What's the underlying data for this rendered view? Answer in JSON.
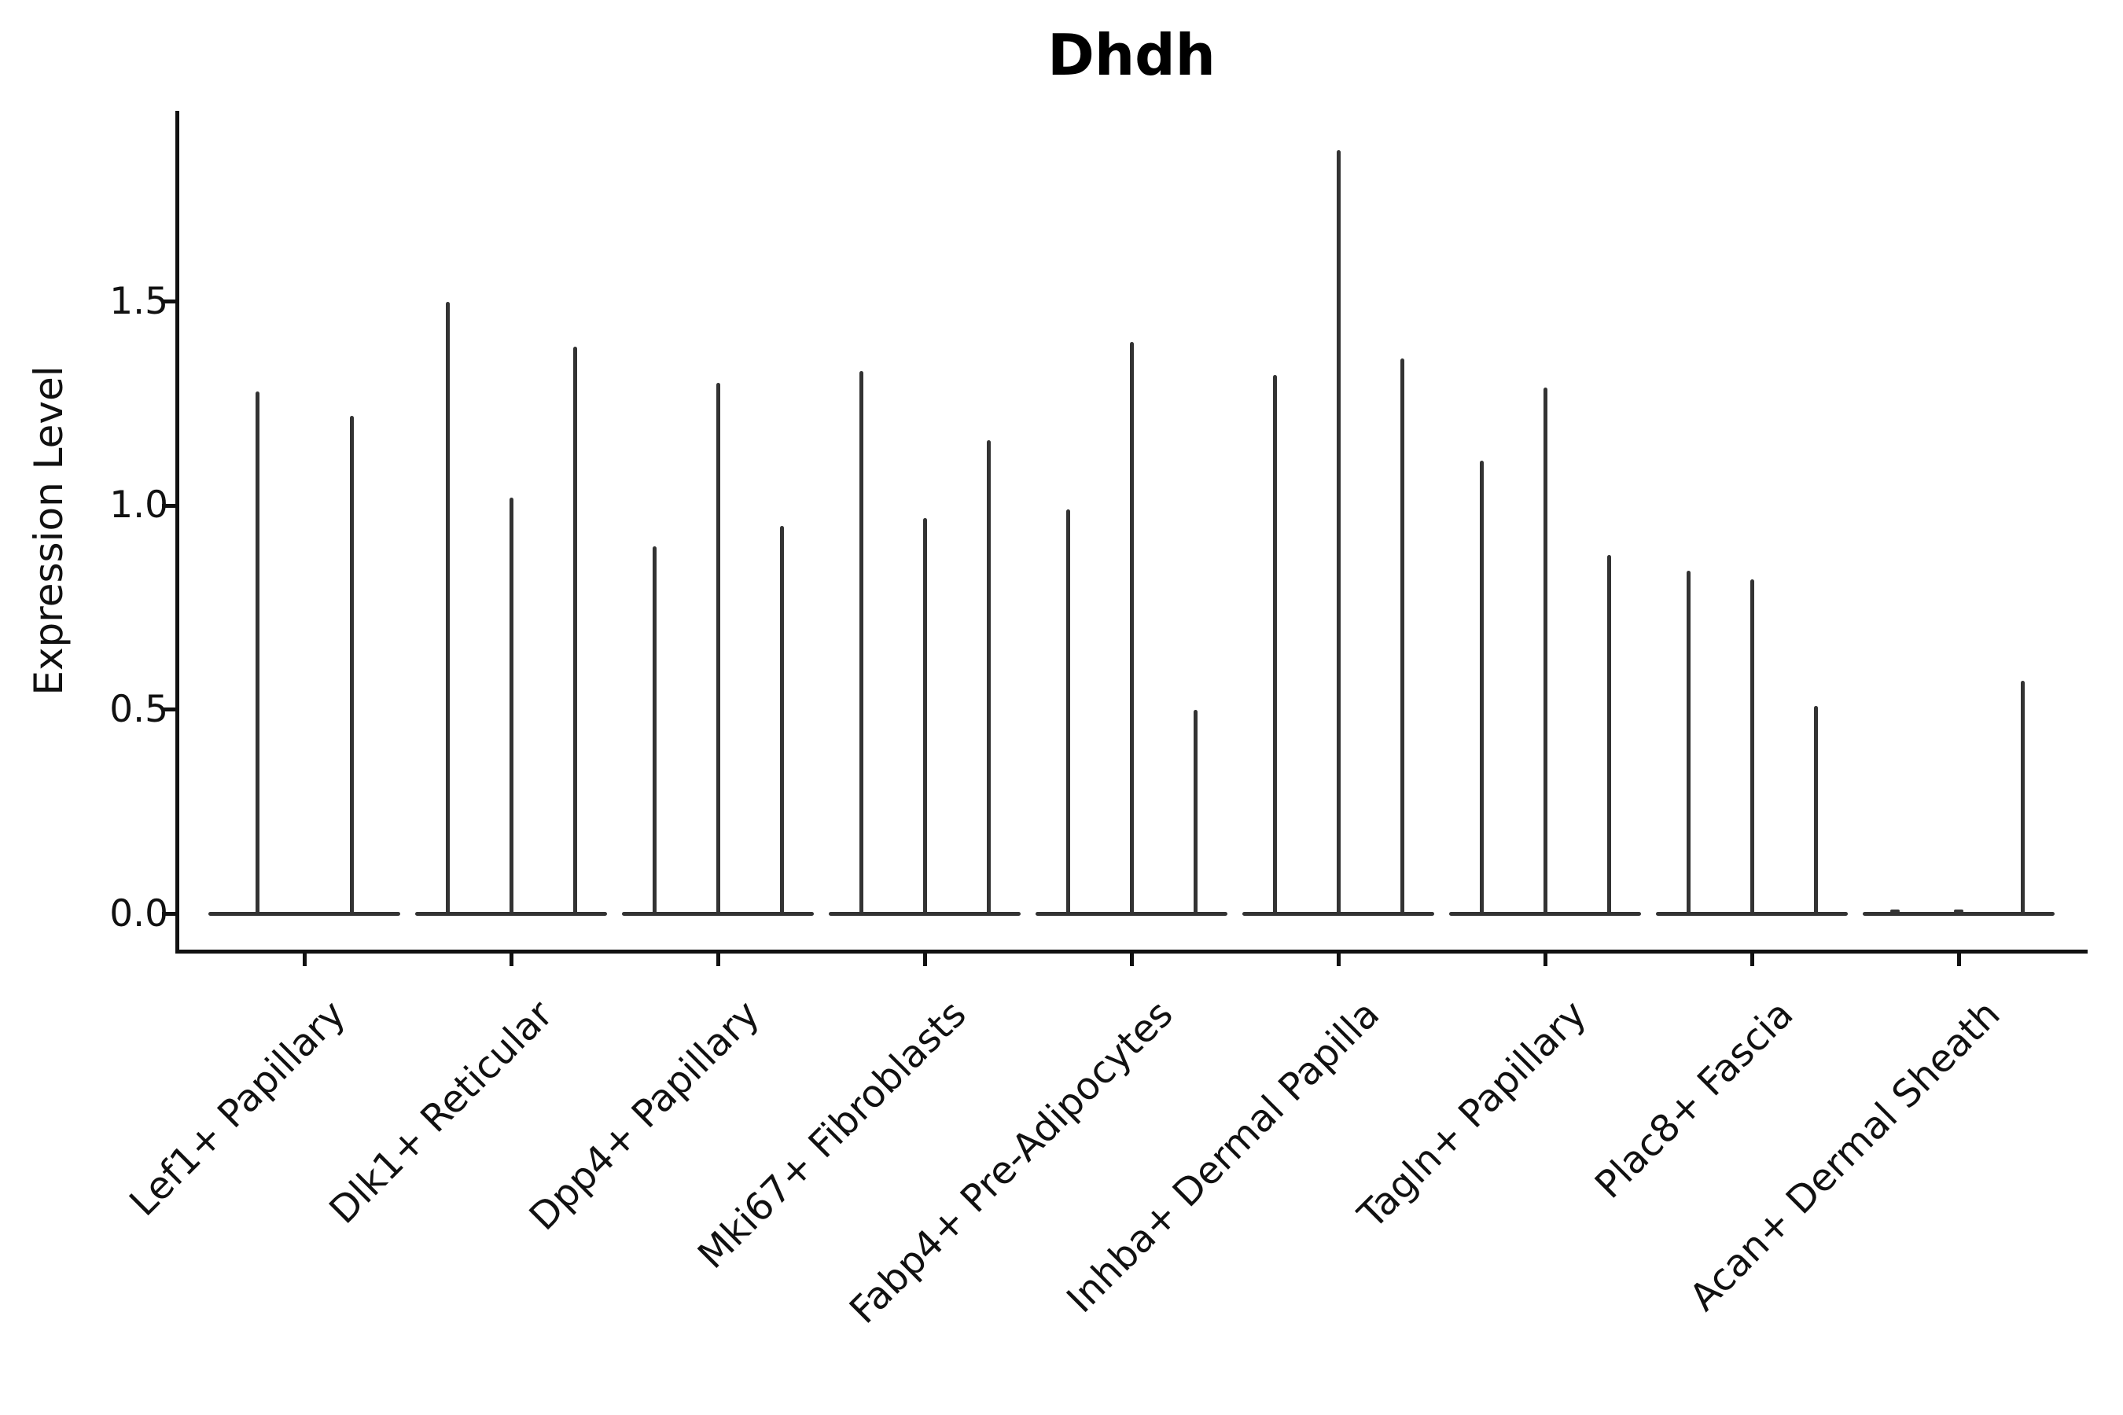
{
  "figure": {
    "title": "Dhdh",
    "background_color": "#ffffff",
    "spine_color": "#111111",
    "text_color": "#111111"
  },
  "axes": {
    "ylabel": "Expression Level",
    "xlabel": "",
    "ytick_labels": [
      "0.0",
      "0.5",
      "1.0",
      "1.5"
    ]
  },
  "chart_data": {
    "type": "violin",
    "title": "Dhdh",
    "xlabel": "",
    "ylabel": "Expression Level",
    "yticks": [
      0.0,
      0.5,
      1.0,
      1.5
    ],
    "ylim": [
      -0.09,
      1.97
    ],
    "grid": false,
    "legend": null,
    "violin_color": "#333333",
    "note": "Very thin spike-like violins; all density mass sits at 0 with a thin spike to the listed max expression value. Each category holds 2-3 violins; 0 means a flat violin at baseline.",
    "categories": [
      "Lef1+ Papillary",
      "Dlk1+ Reticular",
      "Dpp4+ Papillary",
      "Mki67+ Fibroblasts",
      "Fabp4+ Pre-Adipocytes",
      "Inhba+ Dermal Papilla",
      "Tagln+ Papillary",
      "Plac8+ Fascia",
      "Acan+ Dermal Sheath"
    ],
    "groups": [
      {
        "category": "Lef1+ Papillary",
        "violin_peaks": [
          1.28,
          1.22
        ]
      },
      {
        "category": "Dlk1+ Reticular",
        "violin_peaks": [
          1.5,
          1.02,
          1.39
        ]
      },
      {
        "category": "Dpp4+ Papillary",
        "violin_peaks": [
          0.9,
          1.3,
          0.95
        ]
      },
      {
        "category": "Mki67+ Fibroblasts",
        "violin_peaks": [
          1.33,
          0.97,
          1.16
        ]
      },
      {
        "category": "Fabp4+ Pre-Adipocytes",
        "violin_peaks": [
          0.99,
          1.4,
          0.5
        ]
      },
      {
        "category": "Inhba+ Dermal Papilla",
        "violin_peaks": [
          1.32,
          1.87,
          1.36
        ]
      },
      {
        "category": "Tagln+ Papillary",
        "violin_peaks": [
          1.11,
          1.29,
          0.88
        ]
      },
      {
        "category": "Plac8+ Fascia",
        "violin_peaks": [
          0.84,
          0.82,
          0.51
        ]
      },
      {
        "category": "Acan+ Dermal Sheath",
        "violin_peaks": [
          0.0,
          0.0,
          0.57
        ]
      }
    ]
  }
}
